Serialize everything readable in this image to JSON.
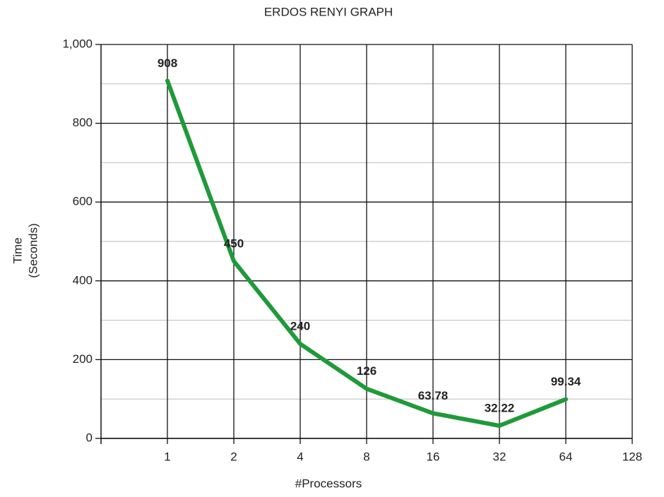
{
  "chart_data": {
    "type": "line",
    "title": "ERDOS RENYI GRAPH",
    "x_label": "#Processors",
    "y_label": [
      "Time",
      "(Seconds)"
    ],
    "x": [
      1,
      2,
      4,
      8,
      16,
      32,
      64
    ],
    "series": [
      {
        "name": "Time",
        "color": "#1f9a3a",
        "values": [
          908,
          450,
          240,
          126,
          63.78,
          32.22,
          99.34
        ]
      }
    ],
    "xlim": [
      0.5,
      128
    ],
    "xscale": "log",
    "xticks": [
      1,
      2,
      4,
      8,
      16,
      32,
      64,
      128
    ],
    "ylim": [
      0,
      1000
    ],
    "yticks": [
      0,
      200,
      400,
      600,
      800,
      {
        "value": 1000,
        "label": "1,000"
      }
    ],
    "y_minor_ticks": [
      100,
      300,
      500,
      700,
      900
    ],
    "grid": true
  }
}
